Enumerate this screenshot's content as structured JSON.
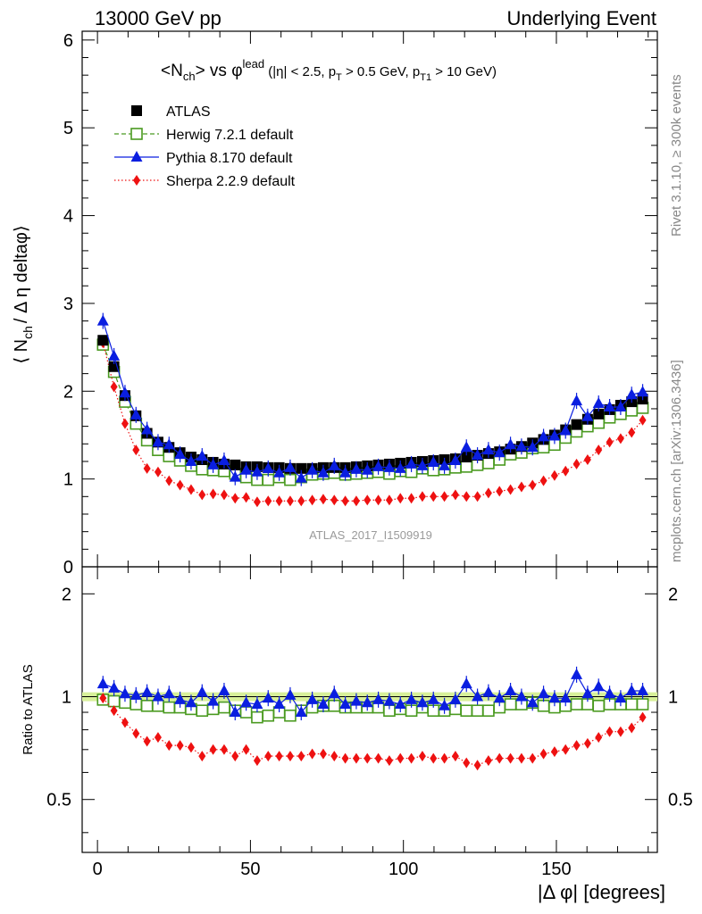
{
  "header": {
    "left": "13000 GeV pp",
    "right": "Underlying Event"
  },
  "side_labels": {
    "rivet": "Rivet 3.1.10, ≥ 300k events",
    "mcplots": "mcplots.cern.ch [arXiv:1306.3436]"
  },
  "chart_data": {
    "type": "line",
    "title": "<Nch> vs φlead (|η| < 2.5, pT > 0.5 GeV, pT1 > 10 GeV)",
    "title_parts": {
      "main_a": "<N",
      "main_sub": "ch",
      "main_b": "> vs φ",
      "main_sup": "lead",
      "cut_a": " (|η| < 2.5, p",
      "cut_sub1": "T",
      "cut_b": " > 0.5 GeV, p",
      "cut_sub2": "T1",
      "cut_c": " > 10 GeV)"
    },
    "watermark": "ATLAS_2017_I1509919",
    "xlabel": "|Δ φ| [degrees]",
    "ylabel_parts": {
      "a": "⟨ N",
      "sub": "ch",
      "b": "/ Δ η deltaφ⟩"
    },
    "ratio_ylabel": "Ratio to ATLAS",
    "xlim": [
      -5,
      183
    ],
    "ylim": [
      0,
      6.1
    ],
    "ratio_ylim": [
      0.35,
      2.4
    ],
    "ratio_log_scale": true,
    "x_ticks": [
      "0",
      "50",
      "100",
      "150"
    ],
    "y_ticks": [
      "0",
      "1",
      "2",
      "3",
      "4",
      "5",
      "6"
    ],
    "ratio_y_ticks": [
      "0.5",
      "1",
      "2"
    ],
    "grid": false,
    "legend_position": "top-left",
    "x": [
      1.8,
      5.4,
      9.0,
      12.6,
      16.2,
      19.8,
      23.4,
      27.0,
      30.6,
      34.2,
      37.8,
      41.4,
      45.0,
      48.6,
      52.2,
      55.8,
      59.4,
      63.0,
      66.6,
      70.2,
      73.8,
      77.4,
      81.0,
      84.6,
      88.2,
      91.8,
      95.4,
      99.0,
      102.6,
      106.2,
      109.8,
      113.4,
      117.0,
      120.6,
      124.2,
      127.8,
      131.4,
      135.0,
      138.6,
      142.2,
      145.8,
      149.4,
      153.0,
      156.6,
      160.2,
      163.8,
      167.4,
      171.0,
      174.6,
      178.2
    ],
    "series": [
      {
        "name": "ATLAS",
        "color": "#000000",
        "marker": "filled-square",
        "values": [
          2.58,
          2.28,
          1.95,
          1.72,
          1.52,
          1.42,
          1.36,
          1.3,
          1.25,
          1.22,
          1.19,
          1.17,
          1.16,
          1.14,
          1.14,
          1.13,
          1.13,
          1.12,
          1.12,
          1.12,
          1.13,
          1.13,
          1.13,
          1.14,
          1.15,
          1.16,
          1.17,
          1.18,
          1.19,
          1.2,
          1.21,
          1.22,
          1.23,
          1.25,
          1.27,
          1.29,
          1.31,
          1.34,
          1.37,
          1.41,
          1.45,
          1.5,
          1.56,
          1.62,
          1.68,
          1.74,
          1.79,
          1.84,
          1.88,
          1.91
        ],
        "ratio": [
          1.0,
          1.0,
          1.0,
          1.0,
          1.0,
          1.0,
          1.0,
          1.0,
          1.0,
          1.0,
          1.0,
          1.0,
          1.0,
          1.0,
          1.0,
          1.0,
          1.0,
          1.0,
          1.0,
          1.0,
          1.0,
          1.0,
          1.0,
          1.0,
          1.0,
          1.0,
          1.0,
          1.0,
          1.0,
          1.0,
          1.0,
          1.0,
          1.0,
          1.0,
          1.0,
          1.0,
          1.0,
          1.0,
          1.0,
          1.0,
          1.0,
          1.0,
          1.0,
          1.0,
          1.0,
          1.0,
          1.0,
          1.0,
          1.0,
          1.0
        ]
      },
      {
        "name": "Herwig 7.2.1 default",
        "color": "#4a9a20",
        "marker": "open-square",
        "dash": "dashed",
        "values": [
          2.53,
          2.22,
          1.88,
          1.63,
          1.44,
          1.33,
          1.26,
          1.21,
          1.15,
          1.11,
          1.1,
          1.09,
          1.06,
          1.02,
          0.99,
          0.99,
          1.02,
          0.99,
          1.02,
          1.05,
          1.06,
          1.07,
          1.05,
          1.06,
          1.07,
          1.08,
          1.06,
          1.09,
          1.08,
          1.12,
          1.1,
          1.11,
          1.13,
          1.14,
          1.16,
          1.18,
          1.22,
          1.28,
          1.3,
          1.35,
          1.36,
          1.39,
          1.47,
          1.54,
          1.6,
          1.64,
          1.7,
          1.74,
          1.78,
          1.81
        ],
        "ratio": [
          0.98,
          0.97,
          0.96,
          0.95,
          0.94,
          0.94,
          0.93,
          0.93,
          0.92,
          0.91,
          0.92,
          0.93,
          0.91,
          0.9,
          0.87,
          0.88,
          0.9,
          0.88,
          0.91,
          0.93,
          0.94,
          0.94,
          0.93,
          0.93,
          0.93,
          0.93,
          0.91,
          0.92,
          0.91,
          0.93,
          0.91,
          0.91,
          0.92,
          0.91,
          0.91,
          0.91,
          0.93,
          0.95,
          0.95,
          0.96,
          0.94,
          0.93,
          0.94,
          0.95,
          0.95,
          0.94,
          0.95,
          0.95,
          0.95,
          0.95
        ]
      },
      {
        "name": "Pythia 8.170 default",
        "color": "#0a1ee0",
        "marker": "filled-triangle",
        "values": [
          2.8,
          2.4,
          1.98,
          1.73,
          1.56,
          1.42,
          1.39,
          1.28,
          1.2,
          1.26,
          1.16,
          1.21,
          1.02,
          1.1,
          1.08,
          1.12,
          1.07,
          1.13,
          1.01,
          1.1,
          1.07,
          1.15,
          1.07,
          1.11,
          1.1,
          1.14,
          1.13,
          1.12,
          1.17,
          1.15,
          1.19,
          1.15,
          1.21,
          1.36,
          1.27,
          1.33,
          1.3,
          1.39,
          1.37,
          1.36,
          1.48,
          1.49,
          1.55,
          1.89,
          1.71,
          1.86,
          1.82,
          1.82,
          1.96,
          1.99
        ],
        "ratio": [
          1.09,
          1.06,
          1.02,
          1.01,
          1.03,
          1.0,
          1.02,
          0.98,
          0.96,
          1.03,
          0.97,
          1.04,
          0.9,
          0.96,
          0.95,
          0.99,
          0.95,
          1.01,
          0.9,
          0.98,
          0.95,
          1.02,
          0.95,
          0.97,
          0.96,
          0.98,
          0.97,
          0.95,
          0.98,
          0.96,
          0.98,
          0.94,
          0.98,
          1.09,
          1.0,
          1.03,
          0.99,
          1.04,
          1.0,
          0.96,
          1.02,
          0.99,
          0.99,
          1.16,
          1.02,
          1.07,
          1.02,
          0.99,
          1.04,
          1.04
        ]
      },
      {
        "name": "Sherpa 2.2.9 default",
        "color": "#ee1111",
        "marker": "filled-diamond",
        "dash": "dotted",
        "values": [
          2.55,
          2.05,
          1.63,
          1.33,
          1.12,
          1.08,
          0.98,
          0.93,
          0.88,
          0.82,
          0.83,
          0.82,
          0.78,
          0.79,
          0.74,
          0.75,
          0.75,
          0.75,
          0.75,
          0.76,
          0.77,
          0.76,
          0.75,
          0.75,
          0.76,
          0.76,
          0.76,
          0.78,
          0.78,
          0.8,
          0.8,
          0.8,
          0.82,
          0.8,
          0.8,
          0.84,
          0.86,
          0.88,
          0.91,
          0.93,
          0.98,
          1.04,
          1.09,
          1.17,
          1.22,
          1.33,
          1.42,
          1.46,
          1.53,
          1.67
        ],
        "ratio": [
          0.99,
          0.91,
          0.84,
          0.78,
          0.74,
          0.76,
          0.72,
          0.72,
          0.71,
          0.67,
          0.7,
          0.7,
          0.67,
          0.7,
          0.65,
          0.67,
          0.67,
          0.67,
          0.67,
          0.68,
          0.68,
          0.67,
          0.66,
          0.66,
          0.66,
          0.66,
          0.65,
          0.66,
          0.66,
          0.67,
          0.66,
          0.66,
          0.67,
          0.64,
          0.63,
          0.65,
          0.66,
          0.66,
          0.66,
          0.66,
          0.68,
          0.69,
          0.7,
          0.72,
          0.73,
          0.76,
          0.79,
          0.79,
          0.81,
          0.87
        ]
      }
    ]
  }
}
